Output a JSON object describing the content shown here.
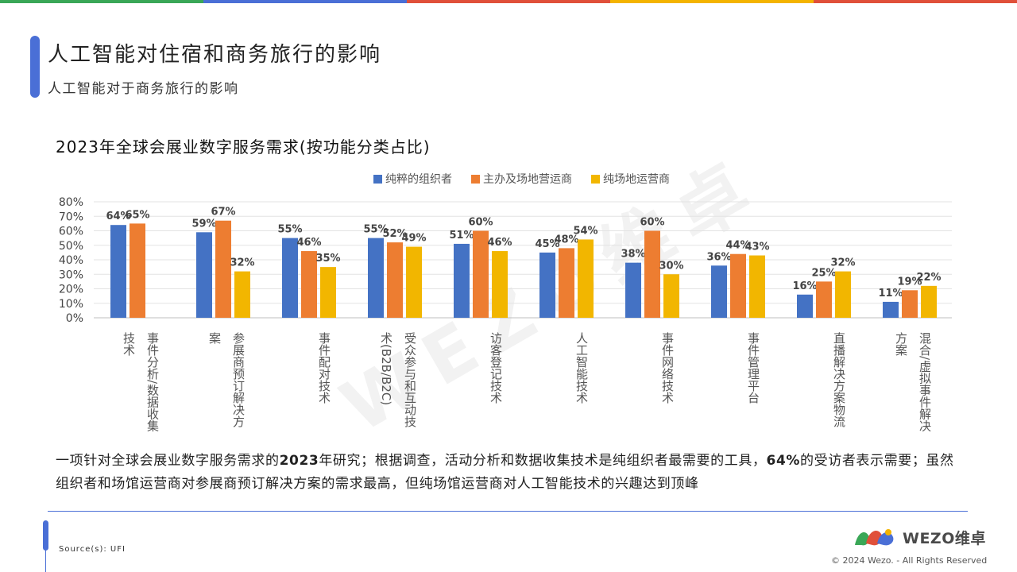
{
  "header": {
    "title": "人工智能对住宿和商务旅行的影响",
    "subtitle": "人工智能对于商务旅行的影响"
  },
  "top_bar_colors": [
    "#3aa757",
    "#4a6fd6",
    "#e0503a",
    "#f4b400",
    "#e0503a"
  ],
  "chart_data": {
    "type": "bar",
    "title": "2023年全球会展业数字服务需求(按功能分类占比)",
    "categories": [
      "事件分析/数据收集技术",
      "参展商预订解决方案",
      "事件配对技术",
      "受众参与和互动技术(B2B/B2C)",
      "访客登记技术",
      "人工智能技术",
      "事件网络技术",
      "事件管理平台",
      "直播解决方案物流",
      "混合/虚拟事件解决方案"
    ],
    "category_lines": [
      [
        "事件分析/数据收集",
        "技术"
      ],
      [
        "参展商预订解决方",
        "案"
      ],
      [
        "事件配对技术"
      ],
      [
        "受众参与和互动技",
        "术(B2B/B2C)"
      ],
      [
        "访客登记技术"
      ],
      [
        "人工智能技术"
      ],
      [
        "事件网络技术"
      ],
      [
        "事件管理平台"
      ],
      [
        "直播解决方案物流"
      ],
      [
        "混合/虚拟事件解决",
        "方案"
      ]
    ],
    "series": [
      {
        "name": "纯粹的组织者",
        "color": "#4472c4",
        "values": [
          64,
          59,
          55,
          55,
          51,
          45,
          38,
          36,
          16,
          11
        ]
      },
      {
        "name": "主办及场地营运商",
        "color": "#ed7d31",
        "values": [
          65,
          67,
          46,
          52,
          60,
          48,
          60,
          44,
          25,
          19
        ]
      },
      {
        "name": "纯场地运营商",
        "color": "#f2b600",
        "values": [
          null,
          32,
          35,
          49,
          46,
          54,
          30,
          43,
          32,
          22
        ]
      }
    ],
    "ylim": [
      0,
      80
    ],
    "yticks": [
      "0%",
      "10%",
      "20%",
      "30%",
      "40%",
      "50%",
      "60%",
      "70%",
      "80%"
    ],
    "value_suffix": "%",
    "grid": true,
    "legend_position": "top"
  },
  "description": {
    "p1": "一项针对全球会展业数字服务需求的",
    "p1_bold": "2023",
    "p2": "年研究；根据调查，活动分析和数据收集技术是纯组织者最需要的工具，",
    "p2_bold": "64%",
    "p3": "的受访者表示需要；虽然组织者和场馆运营商对参展商预订解决方案的需求最高，但纯场馆运营商对人工智能技术的兴趣达到顶峰"
  },
  "footer": {
    "source": "Source(s): UFI",
    "logo_text": "WEZO维卓",
    "copyright": "© 2024 Wezo. - All Rights Reserved"
  },
  "watermark": "WEZO维卓"
}
